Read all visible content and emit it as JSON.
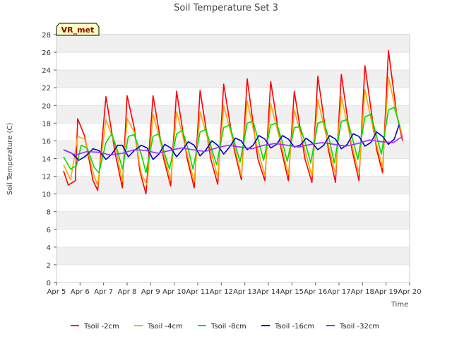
{
  "chart_data": {
    "type": "line",
    "title": "Soil Temperature Set 3",
    "xlabel": "Time",
    "ylabel": "Soil Temperature (C)",
    "xlim": [
      0,
      15
    ],
    "ylim": [
      0,
      28
    ],
    "yticks": [
      0,
      2,
      4,
      6,
      8,
      10,
      12,
      14,
      16,
      18,
      20,
      22,
      24,
      26,
      28
    ],
    "xtick_labels": [
      "Apr 5",
      "Apr 6",
      "Apr 7",
      "Apr 8",
      "Apr 9",
      "Apr 10",
      "Apr 11",
      "Apr 12",
      "Apr 13",
      "Apr 14",
      "Apr 15",
      "Apr 16",
      "Apr 17",
      "Apr 18",
      "Apr 19",
      "Apr 20"
    ],
    "badge": "VR_met",
    "grid": "horizontal bands",
    "legend_position": "bottom",
    "series": [
      {
        "name": "Tsoil -2cm",
        "color": "#ff0000",
        "x": [
          0.3,
          0.5,
          0.8,
          0.9,
          1.2,
          1.55,
          1.75,
          2.1,
          2.5,
          2.8,
          3.0,
          3.3,
          3.55,
          3.8,
          4.1,
          4.55,
          4.85,
          5.1,
          5.55,
          5.85,
          6.1,
          6.55,
          6.85,
          7.1,
          7.55,
          7.85,
          8.1,
          8.55,
          8.85,
          9.1,
          9.55,
          9.85,
          10.1,
          10.55,
          10.85,
          11.1,
          11.55,
          11.85,
          12.1,
          12.55,
          12.85,
          13.1,
          13.6,
          13.85,
          14.1,
          14.45,
          14.7
        ],
        "y": [
          12.6,
          11.0,
          11.5,
          18.5,
          16.5,
          11.5,
          10.4,
          21.0,
          14.5,
          10.7,
          21.1,
          17.5,
          12.5,
          10.0,
          21.1,
          14.0,
          10.9,
          21.6,
          14.0,
          10.7,
          21.7,
          14.0,
          11.1,
          22.4,
          15.0,
          11.6,
          23.0,
          14.0,
          11.5,
          22.7,
          15.0,
          11.5,
          21.6,
          14.0,
          11.3,
          23.3,
          15.0,
          11.3,
          23.5,
          15.0,
          11.5,
          24.5,
          15.0,
          12.4,
          26.2,
          19.0,
          16.0
        ]
      },
      {
        "name": "Tsoil -4cm",
        "color": "#ffa500",
        "x": [
          0.3,
          0.6,
          0.9,
          1.2,
          1.6,
          1.75,
          2.1,
          2.5,
          2.8,
          3.0,
          3.3,
          3.6,
          3.85,
          4.1,
          4.55,
          4.85,
          5.1,
          5.55,
          5.85,
          6.1,
          6.55,
          6.85,
          7.1,
          7.55,
          7.85,
          8.1,
          8.55,
          8.85,
          9.1,
          9.55,
          9.85,
          10.1,
          10.55,
          10.85,
          11.1,
          11.55,
          11.85,
          12.1,
          12.55,
          12.85,
          13.1,
          13.55,
          13.85,
          14.1,
          14.45,
          14.7
        ],
        "y": [
          13.3,
          11.6,
          16.5,
          16.2,
          12.0,
          11.0,
          18.4,
          15.5,
          11.4,
          18.5,
          17.0,
          12.3,
          11.0,
          19.0,
          14.5,
          11.6,
          19.3,
          14.5,
          11.4,
          19.3,
          15.0,
          11.8,
          20.0,
          15.5,
          12.0,
          20.5,
          15.0,
          12.1,
          20.2,
          15.5,
          12.2,
          19.5,
          15.0,
          12.0,
          20.7,
          15.5,
          12.2,
          21.0,
          15.5,
          12.3,
          21.8,
          16.0,
          13.0,
          23.2,
          19.0,
          16.5
        ]
      },
      {
        "name": "Tsoil -8cm",
        "color": "#00dd00",
        "x": [
          0.3,
          0.6,
          0.85,
          1.05,
          1.3,
          1.6,
          1.8,
          2.1,
          2.35,
          2.6,
          2.8,
          3.05,
          3.3,
          3.6,
          3.8,
          4.1,
          4.35,
          4.6,
          4.8,
          5.1,
          5.35,
          5.6,
          5.8,
          6.1,
          6.35,
          6.6,
          6.8,
          7.1,
          7.35,
          7.6,
          7.8,
          8.1,
          8.35,
          8.6,
          8.8,
          9.1,
          9.35,
          9.6,
          9.8,
          10.1,
          10.35,
          10.6,
          10.8,
          11.1,
          11.35,
          11.6,
          11.8,
          12.1,
          12.35,
          12.6,
          12.8,
          13.1,
          13.35,
          13.6,
          13.8,
          14.1,
          14.35,
          14.6
        ],
        "y": [
          14.2,
          12.8,
          13.2,
          15.5,
          15.2,
          13.0,
          12.4,
          15.8,
          16.8,
          14.8,
          12.8,
          16.5,
          16.7,
          14.5,
          12.4,
          16.5,
          16.8,
          14.5,
          12.8,
          16.8,
          17.2,
          15.0,
          12.8,
          17.0,
          17.3,
          15.0,
          13.3,
          17.5,
          17.8,
          15.5,
          13.6,
          18.0,
          18.2,
          15.8,
          13.8,
          17.8,
          18.0,
          15.8,
          13.7,
          17.5,
          17.6,
          15.5,
          13.5,
          18.0,
          18.2,
          16.0,
          13.5,
          18.2,
          18.4,
          16.0,
          13.9,
          18.7,
          19.0,
          16.5,
          14.5,
          19.5,
          19.8,
          17.5
        ]
      },
      {
        "name": "Tsoil -16cm",
        "color": "#0000cc",
        "x": [
          0.3,
          0.65,
          0.95,
          1.25,
          1.55,
          1.8,
          2.1,
          2.35,
          2.6,
          2.8,
          3.05,
          3.3,
          3.6,
          3.85,
          4.1,
          4.35,
          4.6,
          4.85,
          5.1,
          5.35,
          5.6,
          5.85,
          6.1,
          6.35,
          6.6,
          6.85,
          7.1,
          7.35,
          7.6,
          7.85,
          8.1,
          8.35,
          8.6,
          8.85,
          9.1,
          9.35,
          9.6,
          9.85,
          10.1,
          10.35,
          10.6,
          10.85,
          11.1,
          11.35,
          11.6,
          11.85,
          12.1,
          12.35,
          12.6,
          12.85,
          13.1,
          13.35,
          13.6,
          13.85,
          14.1,
          14.35,
          14.55
        ],
        "y": [
          15.0,
          14.6,
          13.8,
          14.3,
          15.1,
          14.9,
          13.9,
          14.5,
          15.5,
          15.5,
          14.2,
          14.9,
          15.5,
          15.2,
          13.9,
          14.5,
          15.6,
          15.2,
          14.2,
          15.0,
          15.9,
          15.5,
          14.3,
          15.0,
          16.0,
          15.5,
          14.5,
          15.3,
          16.3,
          16.0,
          15.0,
          15.5,
          16.6,
          16.2,
          15.2,
          15.6,
          16.6,
          16.2,
          15.3,
          15.5,
          16.3,
          15.8,
          15.0,
          15.5,
          16.6,
          16.2,
          15.1,
          15.6,
          16.8,
          16.5,
          15.4,
          15.8,
          17.0,
          16.5,
          15.6,
          16.2,
          17.8
        ]
      },
      {
        "name": "Tsoil -32cm",
        "color": "#9b30ff",
        "x": [
          0.3,
          0.8,
          1.3,
          1.8,
          2.3,
          2.8,
          3.3,
          3.8,
          4.3,
          4.8,
          5.3,
          5.8,
          6.3,
          6.8,
          7.3,
          7.8,
          8.3,
          8.8,
          9.3,
          9.8,
          10.3,
          10.8,
          11.3,
          11.8,
          12.3,
          12.8,
          13.3,
          13.8,
          14.3,
          14.7
        ],
        "y": [
          15.0,
          14.4,
          14.8,
          14.7,
          14.4,
          14.6,
          15.0,
          14.9,
          14.6,
          14.9,
          15.2,
          15.0,
          14.8,
          15.2,
          15.5,
          15.3,
          15.1,
          15.5,
          15.7,
          15.5,
          15.3,
          15.6,
          15.8,
          15.6,
          15.4,
          15.7,
          16.1,
          15.9,
          15.8,
          16.5
        ]
      }
    ]
  }
}
